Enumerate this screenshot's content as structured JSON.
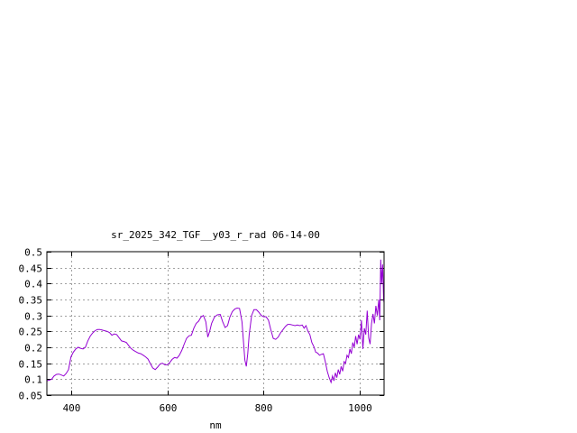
{
  "chart_data": {
    "type": "line",
    "title": "sr_2025_342_TGF__y03_r_rad 06-14-00",
    "xlabel": "nm",
    "ylabel": "",
    "xlim": [
      350,
      1050
    ],
    "ylim": [
      0.05,
      0.5
    ],
    "x_ticks": [
      400,
      600,
      800,
      1000
    ],
    "y_ticks": [
      0.05,
      0.1,
      0.15,
      0.2,
      0.25,
      0.3,
      0.35,
      0.4,
      0.45,
      0.5
    ],
    "y_tick_labels": [
      "0.05",
      "0.1",
      "0.15",
      "0.2",
      "0.25",
      "0.3",
      "0.35",
      "0.4",
      "0.45",
      "0.5"
    ],
    "x_tick_labels": [
      "400",
      "600",
      "800",
      "1000"
    ],
    "grid": true,
    "series": [
      {
        "color": "#9400d3",
        "points": [
          [
            350,
            0.095
          ],
          [
            355,
            0.097
          ],
          [
            360,
            0.1
          ],
          [
            365,
            0.11
          ],
          [
            370,
            0.115
          ],
          [
            375,
            0.116
          ],
          [
            380,
            0.113
          ],
          [
            385,
            0.11
          ],
          [
            390,
            0.118
          ],
          [
            395,
            0.13
          ],
          [
            400,
            0.17
          ],
          [
            405,
            0.185
          ],
          [
            410,
            0.195
          ],
          [
            415,
            0.2
          ],
          [
            420,
            0.197
          ],
          [
            425,
            0.195
          ],
          [
            430,
            0.2
          ],
          [
            435,
            0.22
          ],
          [
            440,
            0.235
          ],
          [
            445,
            0.245
          ],
          [
            450,
            0.252
          ],
          [
            455,
            0.256
          ],
          [
            460,
            0.256
          ],
          [
            465,
            0.254
          ],
          [
            470,
            0.252
          ],
          [
            475,
            0.25
          ],
          [
            480,
            0.246
          ],
          [
            485,
            0.238
          ],
          [
            490,
            0.242
          ],
          [
            495,
            0.24
          ],
          [
            500,
            0.23
          ],
          [
            505,
            0.22
          ],
          [
            510,
            0.218
          ],
          [
            515,
            0.215
          ],
          [
            520,
            0.205
          ],
          [
            525,
            0.196
          ],
          [
            530,
            0.19
          ],
          [
            535,
            0.186
          ],
          [
            540,
            0.182
          ],
          [
            545,
            0.18
          ],
          [
            550,
            0.175
          ],
          [
            555,
            0.17
          ],
          [
            560,
            0.163
          ],
          [
            565,
            0.148
          ],
          [
            570,
            0.135
          ],
          [
            575,
            0.13
          ],
          [
            580,
            0.138
          ],
          [
            585,
            0.148
          ],
          [
            590,
            0.15
          ],
          [
            595,
            0.145
          ],
          [
            600,
            0.145
          ],
          [
            605,
            0.152
          ],
          [
            610,
            0.162
          ],
          [
            615,
            0.168
          ],
          [
            620,
            0.166
          ],
          [
            625,
            0.175
          ],
          [
            630,
            0.19
          ],
          [
            635,
            0.21
          ],
          [
            640,
            0.228
          ],
          [
            645,
            0.236
          ],
          [
            650,
            0.238
          ],
          [
            655,
            0.26
          ],
          [
            660,
            0.275
          ],
          [
            665,
            0.282
          ],
          [
            670,
            0.295
          ],
          [
            675,
            0.3
          ],
          [
            680,
            0.28
          ],
          [
            684,
            0.232
          ],
          [
            688,
            0.25
          ],
          [
            692,
            0.275
          ],
          [
            698,
            0.295
          ],
          [
            704,
            0.302
          ],
          [
            710,
            0.303
          ],
          [
            715,
            0.28
          ],
          [
            720,
            0.262
          ],
          [
            725,
            0.268
          ],
          [
            730,
            0.295
          ],
          [
            735,
            0.312
          ],
          [
            740,
            0.32
          ],
          [
            745,
            0.323
          ],
          [
            750,
            0.322
          ],
          [
            755,
            0.28
          ],
          [
            758,
            0.22
          ],
          [
            761,
            0.16
          ],
          [
            764,
            0.14
          ],
          [
            767,
            0.18
          ],
          [
            770,
            0.24
          ],
          [
            775,
            0.3
          ],
          [
            780,
            0.318
          ],
          [
            785,
            0.318
          ],
          [
            790,
            0.31
          ],
          [
            795,
            0.3
          ],
          [
            800,
            0.296
          ],
          [
            805,
            0.296
          ],
          [
            810,
            0.285
          ],
          [
            815,
            0.255
          ],
          [
            820,
            0.228
          ],
          [
            825,
            0.225
          ],
          [
            830,
            0.232
          ],
          [
            835,
            0.245
          ],
          [
            840,
            0.255
          ],
          [
            845,
            0.265
          ],
          [
            850,
            0.272
          ],
          [
            855,
            0.272
          ],
          [
            860,
            0.27
          ],
          [
            865,
            0.268
          ],
          [
            870,
            0.27
          ],
          [
            875,
            0.268
          ],
          [
            880,
            0.27
          ],
          [
            884,
            0.26
          ],
          [
            888,
            0.268
          ],
          [
            892,
            0.25
          ],
          [
            896,
            0.24
          ],
          [
            900,
            0.215
          ],
          [
            905,
            0.2
          ],
          [
            908,
            0.185
          ],
          [
            912,
            0.182
          ],
          [
            916,
            0.175
          ],
          [
            920,
            0.178
          ],
          [
            924,
            0.18
          ],
          [
            928,
            0.155
          ],
          [
            932,
            0.125
          ],
          [
            936,
            0.105
          ],
          [
            940,
            0.09
          ],
          [
            943,
            0.11
          ],
          [
            946,
            0.095
          ],
          [
            949,
            0.12
          ],
          [
            952,
            0.105
          ],
          [
            955,
            0.13
          ],
          [
            958,
            0.115
          ],
          [
            961,
            0.14
          ],
          [
            964,
            0.125
          ],
          [
            967,
            0.155
          ],
          [
            970,
            0.15
          ],
          [
            973,
            0.175
          ],
          [
            976,
            0.168
          ],
          [
            979,
            0.195
          ],
          [
            982,
            0.18
          ],
          [
            985,
            0.215
          ],
          [
            988,
            0.2
          ],
          [
            991,
            0.235
          ],
          [
            994,
            0.21
          ],
          [
            997,
            0.24
          ],
          [
            1000,
            0.225
          ],
          [
            1003,
            0.285
          ],
          [
            1006,
            0.195
          ],
          [
            1009,
            0.26
          ],
          [
            1012,
            0.24
          ],
          [
            1015,
            0.315
          ],
          [
            1018,
            0.23
          ],
          [
            1021,
            0.21
          ],
          [
            1024,
            0.275
          ],
          [
            1027,
            0.305
          ],
          [
            1030,
            0.275
          ],
          [
            1033,
            0.33
          ],
          [
            1036,
            0.3
          ],
          [
            1039,
            0.35
          ],
          [
            1041,
            0.285
          ],
          [
            1043,
            0.475
          ],
          [
            1045,
            0.4
          ],
          [
            1047,
            0.46
          ],
          [
            1049,
            0.35
          ],
          [
            1050,
            0.34
          ]
        ]
      }
    ]
  }
}
